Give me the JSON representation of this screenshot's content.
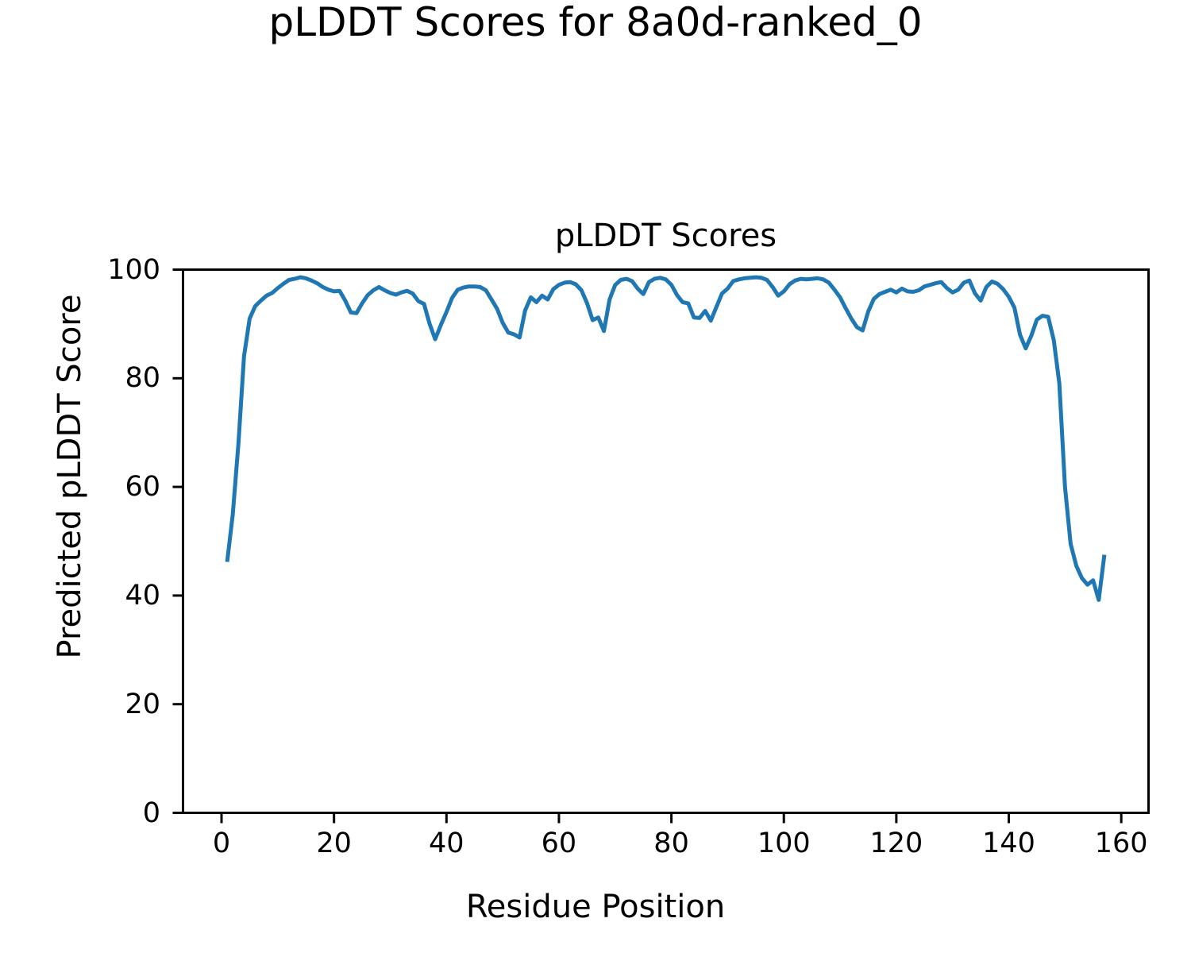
{
  "figure": {
    "suptitle": "pLDDT Scores for 8a0d-ranked_0"
  },
  "chart_data": {
    "type": "line",
    "title": "pLDDT Scores",
    "xlabel": "Residue Position",
    "ylabel": "Predicted pLDDT Score",
    "series_name": "pLDDT",
    "line_color": "#1f77b4",
    "line_width": 5,
    "grid": false,
    "legend": "none",
    "xlim": [
      -6.85,
      164.85
    ],
    "ylim": [
      0,
      100
    ],
    "xticks": [
      0,
      20,
      40,
      60,
      80,
      100,
      120,
      140,
      160
    ],
    "yticks": [
      0,
      20,
      40,
      60,
      80,
      100
    ],
    "x": [
      1,
      2,
      3,
      4,
      5,
      6,
      7,
      8,
      9,
      10,
      11,
      12,
      13,
      14,
      15,
      16,
      17,
      18,
      19,
      20,
      21,
      22,
      23,
      24,
      25,
      26,
      27,
      28,
      29,
      30,
      31,
      32,
      33,
      34,
      35,
      36,
      37,
      38,
      39,
      40,
      41,
      42,
      43,
      44,
      45,
      46,
      47,
      48,
      49,
      50,
      51,
      52,
      53,
      54,
      55,
      56,
      57,
      58,
      59,
      60,
      61,
      62,
      63,
      64,
      65,
      66,
      67,
      68,
      69,
      70,
      71,
      72,
      73,
      74,
      75,
      76,
      77,
      78,
      79,
      80,
      81,
      82,
      83,
      84,
      85,
      86,
      87,
      88,
      89,
      90,
      91,
      92,
      93,
      94,
      95,
      96,
      97,
      98,
      99,
      100,
      101,
      102,
      103,
      104,
      105,
      106,
      107,
      108,
      109,
      110,
      111,
      112,
      113,
      114,
      115,
      116,
      117,
      118,
      119,
      120,
      121,
      122,
      123,
      124,
      125,
      126,
      127,
      128,
      129,
      130,
      131,
      132,
      133,
      134,
      135,
      136,
      137,
      138,
      139,
      140,
      141,
      142,
      143,
      144,
      145,
      146,
      147,
      148,
      149,
      150,
      151,
      152,
      153,
      154,
      155,
      156,
      157
    ],
    "y": [
      46.2,
      55,
      68,
      84,
      91,
      93.3,
      94.3,
      95.2,
      95.7,
      96.6,
      97.4,
      98.1,
      98.3,
      98.6,
      98.4,
      98,
      97.5,
      96.8,
      96.3,
      96,
      96.1,
      94.3,
      92.1,
      92,
      93.8,
      95.3,
      96.2,
      96.8,
      96.2,
      95.7,
      95.4,
      95.8,
      96.1,
      95.6,
      94.2,
      93.7,
      90,
      87.2,
      89.8,
      92.2,
      94.8,
      96.3,
      96.7,
      96.9,
      96.9,
      96.8,
      96.2,
      94.5,
      92.8,
      90.2,
      88.4,
      88.1,
      87.5,
      92.5,
      94.9,
      94,
      95.2,
      94.5,
      96.4,
      97.2,
      97.6,
      97.7,
      97.3,
      96.2,
      93.8,
      90.7,
      91.2,
      88.7,
      94.5,
      97.2,
      98.1,
      98.3,
      97.9,
      96.5,
      95.5,
      97.7,
      98.3,
      98.5,
      98.2,
      97.2,
      95.3,
      94,
      93.8,
      91.2,
      91.1,
      92.4,
      90.6,
      93.1,
      95.6,
      96.5,
      97.9,
      98.2,
      98.4,
      98.5,
      98.6,
      98.5,
      98.1,
      96.8,
      95.2,
      96,
      97.3,
      98,
      98.3,
      98.2,
      98.3,
      98.4,
      98.2,
      97.6,
      96.3,
      94.9,
      92.9,
      91,
      89.4,
      88.8,
      92.3,
      94.6,
      95.5,
      95.9,
      96.3,
      95.8,
      96.5,
      96,
      95.9,
      96.2,
      96.9,
      97.2,
      97.5,
      97.7,
      96.6,
      95.8,
      96.3,
      97.6,
      98,
      95.6,
      94.3,
      96.8,
      97.8,
      97.4,
      96.4,
      95,
      93,
      88,
      85.5,
      87.8,
      90.8,
      91.5,
      91.3,
      87,
      79,
      60,
      49.5,
      45.5,
      43.2,
      42,
      42.8,
      39.2,
      47.5
    ]
  }
}
